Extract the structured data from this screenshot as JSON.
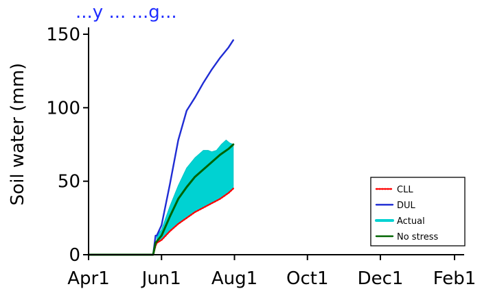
{
  "chart_data": {
    "type": "line",
    "title": "...y ... ...g...",
    "xlabel": "",
    "ylabel": "Soil water (mm)",
    "x_tick_labels": [
      "Apr1",
      "Jun1",
      "Aug1",
      "Oct1",
      "Dec1",
      "Feb1"
    ],
    "x_ticks": [
      "2000-04-01",
      "2000-06-01",
      "2000-08-01",
      "2000-10-01",
      "2000-12-01",
      "2001-02-01"
    ],
    "xlim": [
      "2000-04-01",
      "2001-02-08"
    ],
    "y_ticks": [
      0,
      50,
      100,
      150
    ],
    "ylim": [
      0,
      160
    ],
    "grid": false,
    "legend_position": "bottom-right",
    "series": [
      {
        "name": "CLL",
        "color": "#ff0000",
        "style": "dotted",
        "x": [
          "2000-04-01",
          "2000-05-25",
          "2000-05-27",
          "2000-05-28",
          "2000-06-01",
          "2000-06-08",
          "2000-06-15",
          "2000-06-22",
          "2000-06-29",
          "2000-07-06",
          "2000-07-13",
          "2000-07-20",
          "2000-07-27",
          "2000-07-31"
        ],
        "y": [
          0,
          0,
          6,
          8,
          10,
          16,
          21,
          25,
          29,
          32,
          35,
          38,
          42,
          45
        ]
      },
      {
        "name": "DUL",
        "color": "#1f2cd4",
        "style": "solid",
        "x": [
          "2000-04-01",
          "2000-05-25",
          "2000-05-27",
          "2000-05-28",
          "2000-06-01",
          "2000-06-08",
          "2000-06-15",
          "2000-06-22",
          "2000-06-29",
          "2000-07-06",
          "2000-07-13",
          "2000-07-20",
          "2000-07-27",
          "2000-07-31"
        ],
        "y": [
          0,
          0,
          13,
          13,
          20,
          48,
          78,
          98,
          107,
          117,
          126,
          134,
          141,
          146
        ]
      },
      {
        "name": "Actual",
        "color": "#00d2d2",
        "style": "band",
        "x": [
          "2000-05-28",
          "2000-06-01",
          "2000-06-08",
          "2000-06-15",
          "2000-06-22",
          "2000-06-29",
          "2000-07-06",
          "2000-07-10",
          "2000-07-13",
          "2000-07-17",
          "2000-07-21",
          "2000-07-25",
          "2000-07-28",
          "2000-07-31"
        ],
        "y": [
          13,
          17,
          33,
          47,
          59,
          66,
          71,
          71,
          70,
          71,
          75,
          78,
          76,
          75
        ]
      },
      {
        "name": "No stress",
        "color": "#006400",
        "style": "solid",
        "x": [
          "2000-04-01",
          "2000-05-25",
          "2000-05-27",
          "2000-05-28",
          "2000-06-01",
          "2000-06-08",
          "2000-06-15",
          "2000-06-22",
          "2000-06-29",
          "2000-07-06",
          "2000-07-13",
          "2000-07-20",
          "2000-07-27",
          "2000-07-31"
        ],
        "y": [
          0,
          0,
          8,
          9,
          13,
          26,
          38,
          46,
          53,
          58,
          63,
          68,
          72,
          75
        ]
      }
    ]
  }
}
